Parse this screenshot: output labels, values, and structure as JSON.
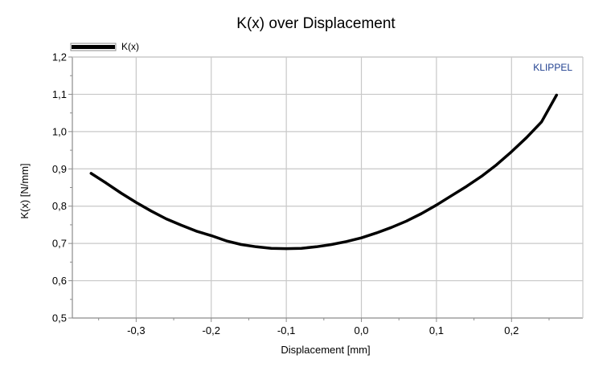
{
  "chart_data": {
    "type": "line",
    "title": "K(x) over Displacement",
    "xlabel": "Displacement [mm]",
    "ylabel": "K(x) [N/mm]",
    "xlim": [
      -0.385,
      0.295
    ],
    "ylim": [
      0.5,
      1.2
    ],
    "x_ticks": [
      -0.3,
      -0.2,
      -0.1,
      0.0,
      0.1,
      0.2
    ],
    "x_tick_labels": [
      "-0,3",
      "-0,2",
      "-0,1",
      "0,0",
      "0,1",
      "0,2"
    ],
    "y_ticks": [
      0.5,
      0.6,
      0.7,
      0.8,
      0.9,
      1.0,
      1.1,
      1.2
    ],
    "y_tick_labels": [
      "0,5",
      "0,6",
      "0,7",
      "0,8",
      "0,9",
      "1,0",
      "1,1",
      "1,2"
    ],
    "grid": true,
    "legend_position": "top-left",
    "brand_label": "KLIPPEL",
    "series": [
      {
        "name": "K(x)",
        "color": "#000000",
        "x": [
          -0.36,
          -0.34,
          -0.32,
          -0.3,
          -0.28,
          -0.26,
          -0.24,
          -0.22,
          -0.2,
          -0.18,
          -0.16,
          -0.14,
          -0.12,
          -0.1,
          -0.08,
          -0.06,
          -0.04,
          -0.02,
          0.0,
          0.02,
          0.04,
          0.06,
          0.08,
          0.1,
          0.12,
          0.14,
          0.16,
          0.18,
          0.2,
          0.22,
          0.24,
          0.26
        ],
        "y": [
          0.888,
          0.862,
          0.835,
          0.81,
          0.787,
          0.766,
          0.749,
          0.733,
          0.721,
          0.707,
          0.697,
          0.691,
          0.687,
          0.686,
          0.687,
          0.691,
          0.697,
          0.705,
          0.715,
          0.728,
          0.743,
          0.76,
          0.78,
          0.803,
          0.828,
          0.853,
          0.88,
          0.911,
          0.946,
          0.984,
          1.026,
          1.098
        ]
      }
    ]
  },
  "colors": {
    "grid": "#c8c8c8",
    "axis": "#8c8c8c",
    "brand": "#1f3f8f"
  }
}
